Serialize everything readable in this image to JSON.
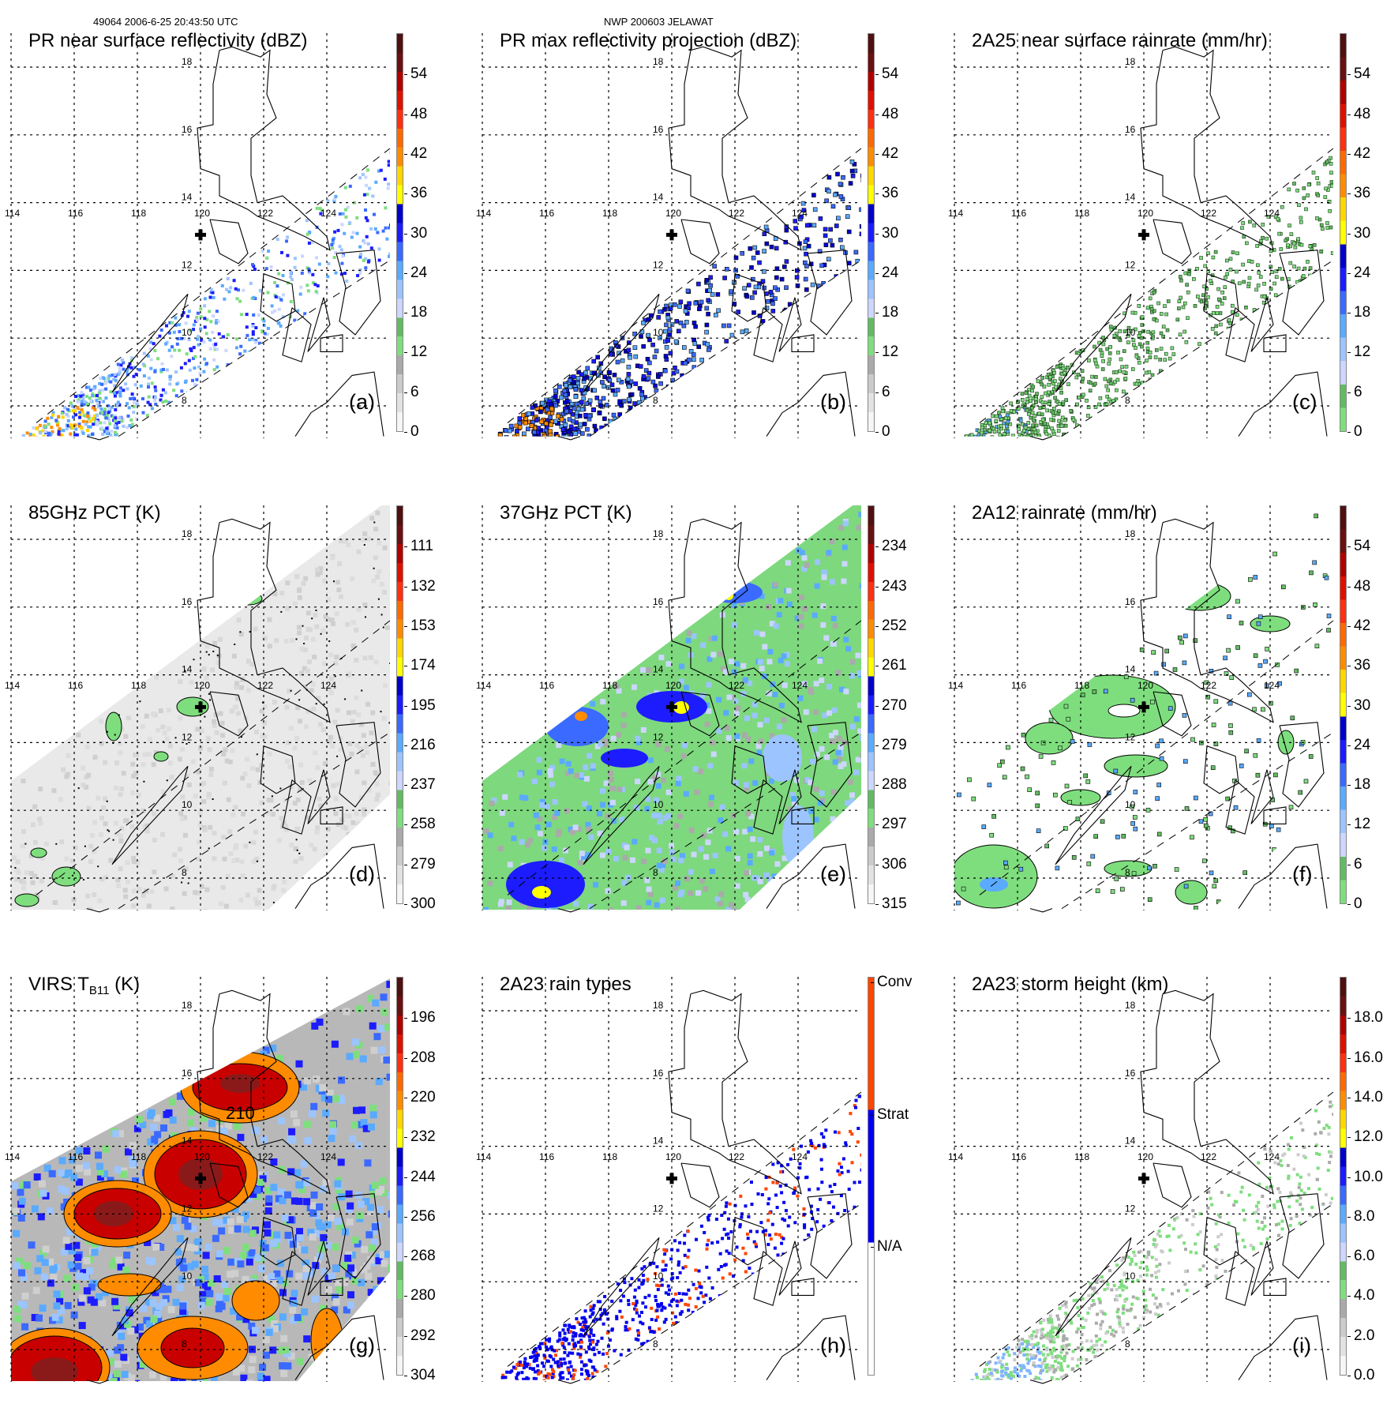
{
  "header": {
    "left": "49064 2006-6-25 20:43:50 UTC",
    "center": "NWP 200603 JELAWAT"
  },
  "grid": {
    "lon_labels": [
      "114",
      "116",
      "118",
      "120",
      "122",
      "124"
    ],
    "lat_labels": [
      "18",
      "16",
      "14",
      "12",
      "10",
      "8"
    ]
  },
  "colors": {
    "ref": [
      "#f6f6f6",
      "#e2e2e2",
      "#cbcbcb",
      "#aaaaaa",
      "#7ede7e",
      "#62bb62",
      "#ccd6ff",
      "#9cc4ff",
      "#5aaaff",
      "#3a6aff",
      "#1c1cff",
      "#0000cc",
      "#ffff00",
      "#ffd700",
      "#ff8c00",
      "#ff6a00",
      "#ff3010",
      "#e01000",
      "#b00000",
      "#6a1010",
      "#501010"
    ],
    "rain": [
      "#7ede7e",
      "#62bb62",
      "#ccd6ff",
      "#9cc4ff",
      "#5aaaff",
      "#3a6aff",
      "#1c1cff",
      "#0000cc",
      "#ffff00",
      "#ffd700",
      "#ff8c00",
      "#ff6a00",
      "#ff3010",
      "#e01000",
      "#b00000",
      "#6a1010",
      "#501010"
    ],
    "type": [
      "#ffffff",
      "#0000ee",
      "#ff4500"
    ]
  },
  "panels": [
    {
      "id": "a",
      "title": "PR near surface reflectivity (dBZ)",
      "letter": "(a)",
      "palette": "ref",
      "labels": [
        "0",
        "6",
        "12",
        "18",
        "24",
        "30",
        "36",
        "42",
        "48",
        "54"
      ]
    },
    {
      "id": "b",
      "title": "PR max reflectivity projection (dBZ)",
      "letter": "(b)",
      "palette": "ref",
      "labels": [
        "0",
        "6",
        "12",
        "18",
        "24",
        "30",
        "36",
        "42",
        "48",
        "54"
      ]
    },
    {
      "id": "c",
      "title": "2A25 near surface rainrate (mm/hr)",
      "letter": "(c)",
      "palette": "rain",
      "labels": [
        "0",
        "6",
        "12",
        "18",
        "24",
        "30",
        "36",
        "42",
        "48",
        "54"
      ]
    },
    {
      "id": "d",
      "title": "85GHz PCT (K)",
      "letter": "(d)",
      "palette": "ref",
      "labels": [
        "300",
        "279",
        "258",
        "237",
        "216",
        "195",
        "174",
        "153",
        "132",
        "111"
      ]
    },
    {
      "id": "e",
      "title": "37GHz PCT (K)",
      "letter": "(e)",
      "palette": "ref",
      "labels": [
        "315",
        "306",
        "297",
        "288",
        "279",
        "270",
        "261",
        "252",
        "243",
        "234"
      ]
    },
    {
      "id": "f",
      "title": "2A12 rainrate (mm/hr)",
      "letter": "(f)",
      "palette": "rain",
      "labels": [
        "0",
        "6",
        "12",
        "18",
        "24",
        "30",
        "36",
        "42",
        "48",
        "54"
      ]
    },
    {
      "id": "g",
      "title": "VIRS T",
      "title_sub": "B11",
      "title_tail": " (K)",
      "letter": "(g)",
      "palette": "ref",
      "labels": [
        "304",
        "292",
        "280",
        "268",
        "256",
        "244",
        "232",
        "220",
        "208",
        "196"
      ],
      "contour_label": "210"
    },
    {
      "id": "h",
      "title": "2A23 rain types",
      "letter": "(h)",
      "palette": "type",
      "labels": [
        "N/A",
        "Strat",
        "Conv"
      ]
    },
    {
      "id": "i",
      "title": "2A23 storm height (km)",
      "letter": "(i)",
      "palette": "ref",
      "labels": [
        "0.0",
        "2.0",
        "4.0",
        "6.0",
        "8.0",
        "10.0",
        "12.0",
        "14.0",
        "16.0",
        "18.0"
      ]
    }
  ]
}
